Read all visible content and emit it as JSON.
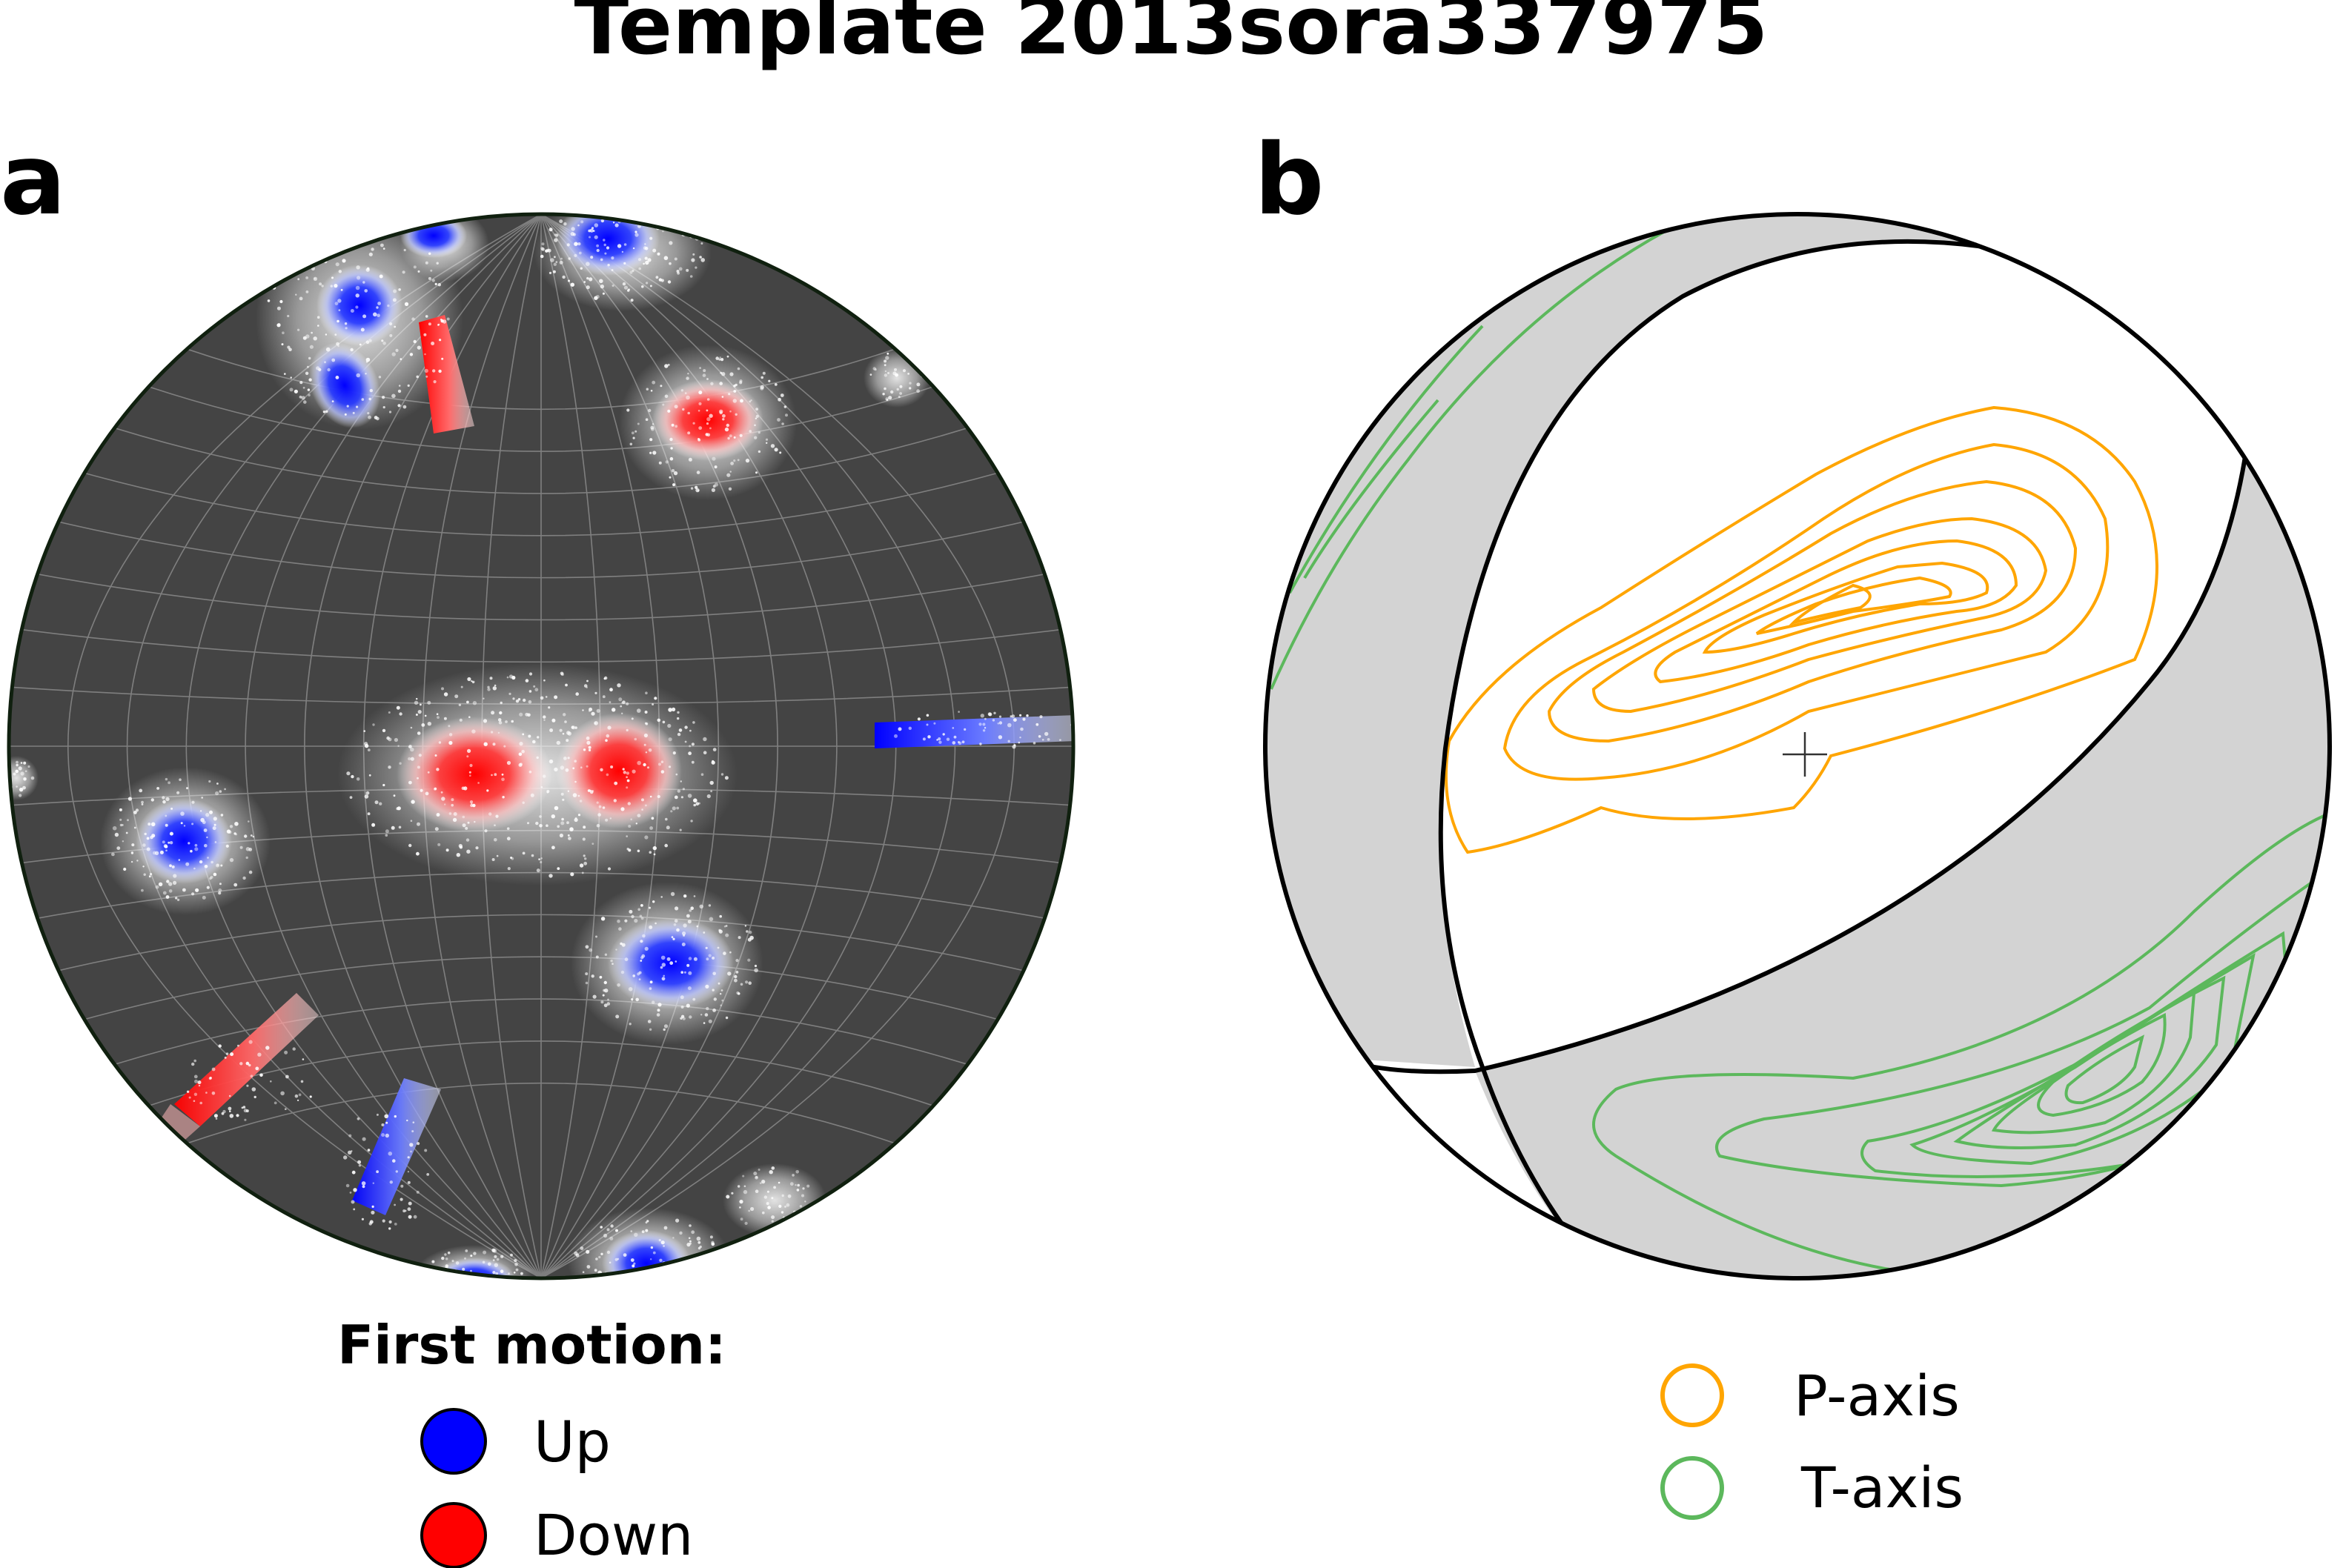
{
  "figure": {
    "title": "Template 2013sora337975"
  },
  "panel_a": {
    "letter": "a",
    "background_color": "#444444",
    "legend": {
      "title": "First motion:",
      "items": [
        {
          "label": "Up",
          "color": "#0000ff"
        },
        {
          "label": "Down",
          "color": "#ff0000"
        }
      ]
    }
  },
  "panel_b": {
    "letter": "b",
    "shaded_color": "#d3d3d3",
    "legend": {
      "items": [
        {
          "label": "P-axis",
          "color": "#ffa500"
        },
        {
          "label": "T-axis",
          "color": "#5cb85c"
        }
      ]
    }
  }
}
